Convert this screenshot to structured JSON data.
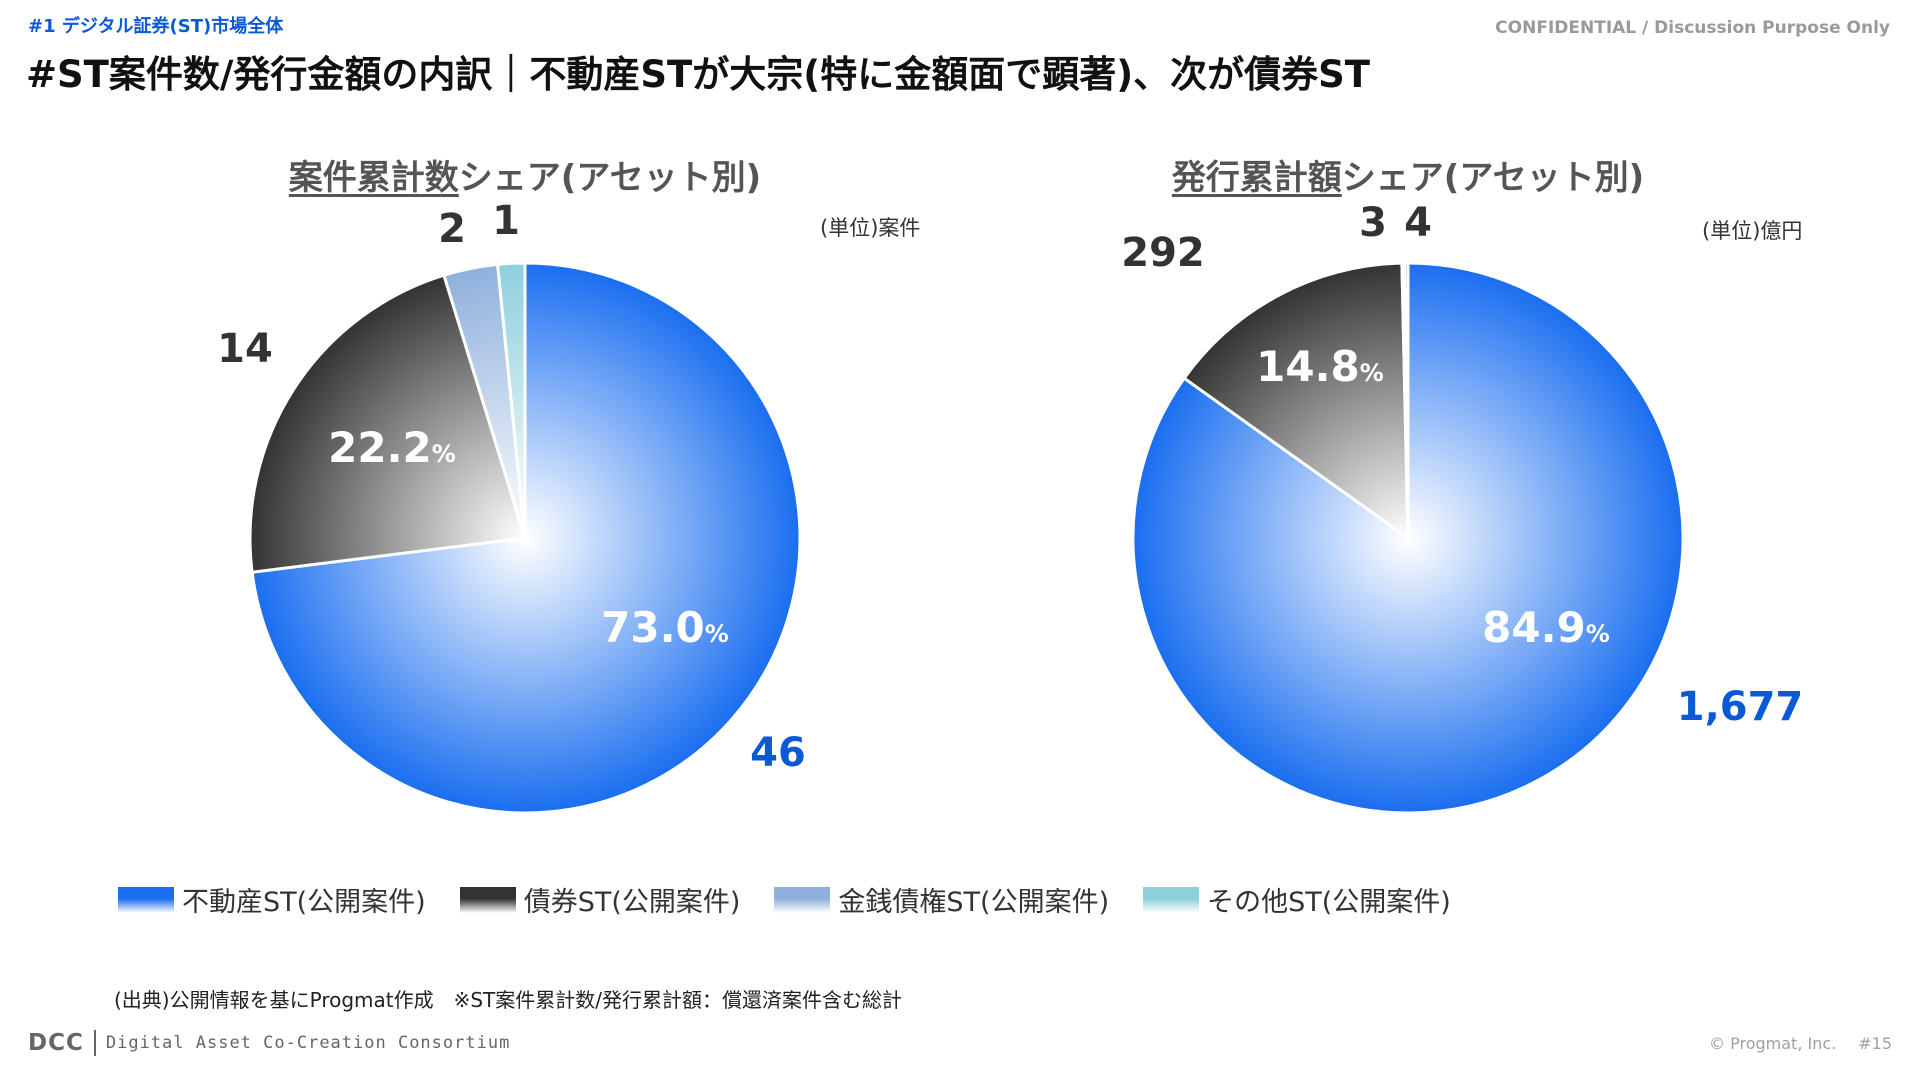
{
  "header": {
    "section_tag": "#1 デジタル証券(ST)市場全体",
    "confidential": "CONFIDENTIAL / Discussion Purpose Only",
    "title": "#ST案件数/発行金額の内訳｜不動産STが大宗(特に金額面で顕著)、次が債券ST"
  },
  "chart_data": [
    {
      "type": "pie",
      "title_underlined": "案件累計数",
      "title_rest": "シェア(アセット別)",
      "unit": "(単位)案件",
      "categories": [
        "不動産ST(公開案件)",
        "債券ST(公開案件)",
        "金銭債権ST(公開案件)",
        "その他ST(公開案件)"
      ],
      "values": [
        46,
        14,
        2,
        1
      ],
      "value_labels": [
        "46",
        "14",
        "2",
        "1"
      ],
      "percent_labels": [
        {
          "num": "73.0",
          "sym": "%"
        },
        {
          "num": "22.2",
          "sym": "%"
        },
        null,
        null
      ]
    },
    {
      "type": "pie",
      "title_underlined": "発行累計額",
      "title_rest": "シェア(アセット別)",
      "unit": "(単位)億円",
      "categories": [
        "不動産ST(公開案件)",
        "債券ST(公開案件)",
        "金銭債権ST(公開案件)",
        "その他ST(公開案件)"
      ],
      "values": [
        1677,
        292,
        3,
        4
      ],
      "value_labels": [
        "1,677",
        "292",
        "3",
        "4"
      ],
      "percent_labels": [
        {
          "num": "84.9",
          "sym": "%"
        },
        {
          "num": "14.8",
          "sym": "%"
        },
        null,
        null
      ]
    }
  ],
  "legend": [
    {
      "label": "不動産ST(公開案件)",
      "color": "#1a6ef0"
    },
    {
      "label": "債券ST(公開案件)",
      "color": "#333333"
    },
    {
      "label": "金銭債権ST(公開案件)",
      "color": "#8fb0dc"
    },
    {
      "label": "その他ST(公開案件)",
      "color": "#8ecfdc"
    }
  ],
  "colors": {
    "realestate_edge": "#1a6ef0",
    "realestate_center": "#ffffff",
    "bond_edge": "#333333",
    "bond_center": "#ffffff",
    "receivable_edge": "#8fb0dc",
    "other_edge": "#8ecfdc",
    "realestate_label": "#0a5ad6",
    "dark_label": "#333333"
  },
  "source": "(出典)公開情報を基にProgmat作成　※ST案件累計数/発行累計額：償還済案件含む総計",
  "footer": {
    "logo": "DCC",
    "consortium": "Digital Asset Co-Creation Consortium",
    "copyright": "© Progmat, Inc.",
    "page": "#15"
  }
}
